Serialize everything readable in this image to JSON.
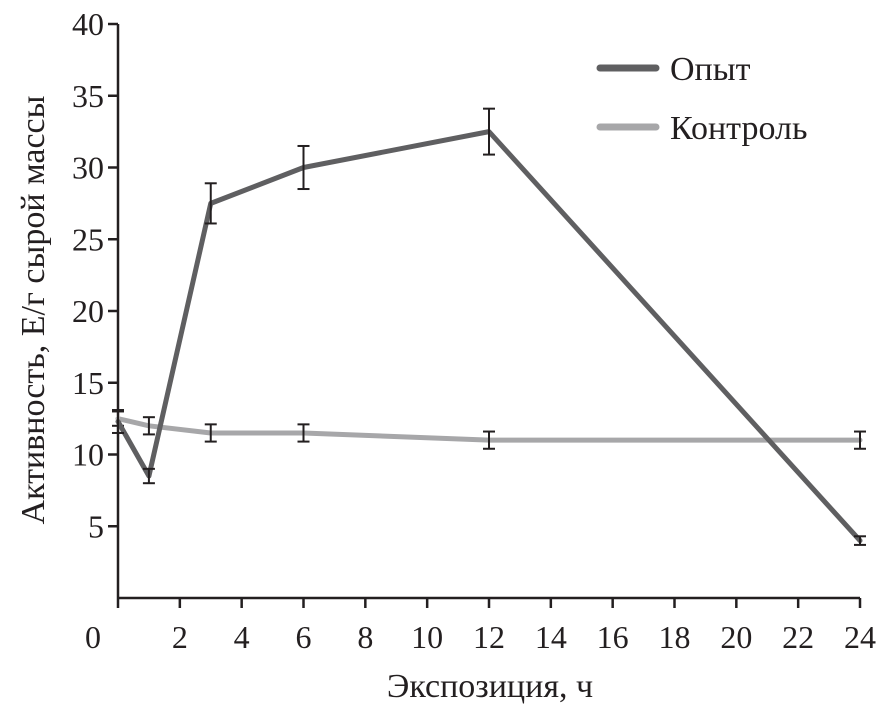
{
  "chart_data": {
    "type": "line",
    "xlabel": "Экспозиция, ч",
    "ylabel": "Активность, Е/г сырой массы",
    "xlim": [
      0,
      24
    ],
    "ylim": [
      0,
      40
    ],
    "xticks": [
      0,
      2,
      4,
      6,
      8,
      10,
      12,
      14,
      16,
      18,
      20,
      22,
      24
    ],
    "yticks": [
      5,
      10,
      15,
      20,
      25,
      30,
      35,
      40
    ],
    "grid": false,
    "legend_position": "top-right",
    "series": [
      {
        "name": "Опыт",
        "color": "#5f5f61",
        "points": [
          {
            "x": 0,
            "y": 12.3,
            "err": 0.8
          },
          {
            "x": 1,
            "y": 8.5,
            "err": 0.5
          },
          {
            "x": 3,
            "y": 27.5,
            "err": 1.4
          },
          {
            "x": 6,
            "y": 30.0,
            "err": 1.5
          },
          {
            "x": 12,
            "y": 32.5,
            "err": 1.6
          },
          {
            "x": 24,
            "y": 4.0,
            "err": 0.3
          }
        ]
      },
      {
        "name": "Контроль",
        "color": "#a7a7a9",
        "points": [
          {
            "x": 0,
            "y": 12.5,
            "err": 0.5
          },
          {
            "x": 1,
            "y": 12.0,
            "err": 0.6
          },
          {
            "x": 3,
            "y": 11.5,
            "err": 0.6
          },
          {
            "x": 6,
            "y": 11.5,
            "err": 0.6
          },
          {
            "x": 12,
            "y": 11.0,
            "err": 0.6
          },
          {
            "x": 24,
            "y": 11.0,
            "err": 0.6
          }
        ]
      }
    ]
  }
}
